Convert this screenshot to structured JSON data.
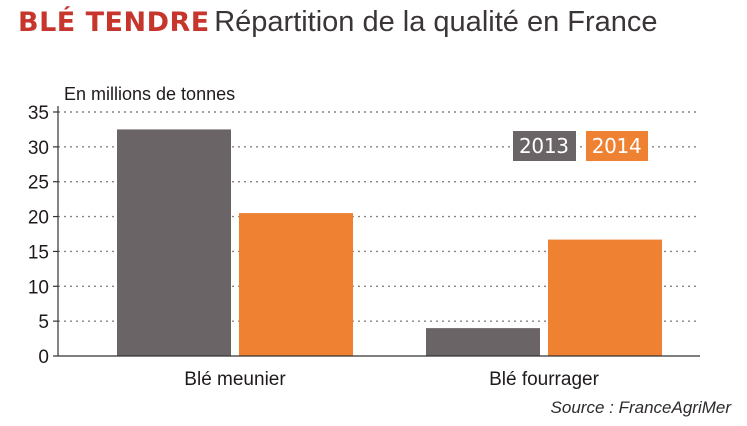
{
  "title": {
    "highlight": "BLÉ TENDRE",
    "text": "Répartition de la qualité en France"
  },
  "colors": {
    "title_accent": "#c7362d",
    "series_2013": "#6b6466",
    "series_2014": "#ef8133",
    "grid": "#8a8283",
    "axis": "#333333"
  },
  "source": "Source : FranceAgriMer",
  "chart_data": {
    "type": "bar",
    "title": "Répartition de la qualité en France",
    "ylabel": "En millions de tonnes",
    "xlabel": "",
    "categories": [
      "Blé meunier",
      "Blé fourrager"
    ],
    "series": [
      {
        "name": "2013",
        "color": "#6b6466",
        "values": [
          32.5,
          4
        ]
      },
      {
        "name": "2014",
        "color": "#ef8133",
        "values": [
          20.5,
          16.7
        ]
      }
    ],
    "ylim": [
      0,
      35
    ],
    "yticks": [
      0,
      5,
      10,
      15,
      20,
      25,
      30,
      35
    ],
    "grid": true,
    "legend": "top-right"
  }
}
